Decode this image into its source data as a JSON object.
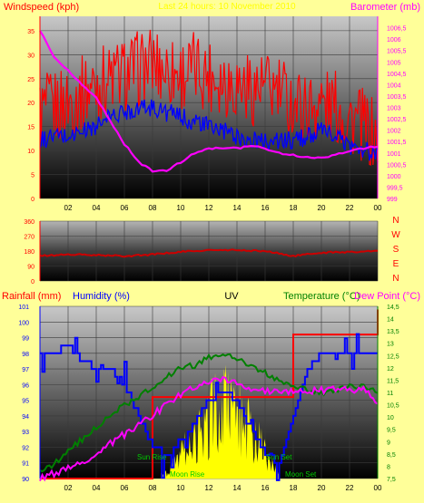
{
  "colors": {
    "background": "#ffff99",
    "red": "#ff0000",
    "blue": "#0000ff",
    "magenta": "#ff00ff",
    "green": "#008000",
    "yellow": "#ffff00",
    "dark_red": "#cc0000"
  },
  "header": {
    "title": "Last 24 hours: 10 November 2010"
  },
  "chart_data": [
    {
      "type": "line",
      "ylabel": "Windspeed (kph)",
      "ylabel_right": "Barometer (mb)",
      "ylim": [
        0,
        38
      ],
      "ylim_right": [
        999,
        1007
      ],
      "yticks": [
        0,
        5,
        10,
        15,
        20,
        25,
        30,
        35
      ],
      "yticks_right": [
        "999",
        "999,5",
        "1000",
        "1000,5",
        "1001",
        "1001,5",
        "1002",
        "1002,5",
        "1003",
        "1003,5",
        "1004",
        "1004,5",
        "1005",
        "1005,5",
        "1006",
        "1006,5"
      ],
      "xticks": [
        "02",
        "04",
        "06",
        "08",
        "10",
        "12",
        "14",
        "16",
        "18",
        "20",
        "22",
        "00"
      ],
      "x_hours": [
        0,
        1,
        2,
        3,
        4,
        5,
        6,
        7,
        8,
        9,
        10,
        11,
        12,
        13,
        14,
        15,
        16,
        17,
        18,
        19,
        20,
        21,
        22,
        23,
        24
      ],
      "series": [
        {
          "color": "#ff0000",
          "values": [
            18,
            19,
            20,
            22,
            24,
            25,
            26,
            27,
            28,
            27,
            26,
            27,
            26,
            25,
            24,
            23,
            23,
            22,
            20,
            19,
            20,
            19,
            17,
            15,
            12
          ]
        },
        {
          "color": "#0000ff",
          "values": [
            12,
            13,
            13,
            14,
            15,
            17,
            18,
            19,
            19,
            18,
            17,
            16,
            15,
            14,
            13,
            12,
            12,
            12,
            12,
            13,
            14,
            13,
            11,
            10,
            9
          ]
        },
        {
          "color": "#ff00ff",
          "axis": "right",
          "values": [
            1006.4,
            1005.2,
            1004.6,
            1004.0,
            1003.4,
            1002.4,
            1001.4,
            1000.6,
            1000.2,
            1000.2,
            1000.6,
            1001.0,
            1001.2,
            1001.2,
            1001.2,
            1001.3,
            1001.2,
            1001.0,
            1000.9,
            1000.8,
            1000.8,
            1000.9,
            1001.1,
            1001.2,
            1001.3
          ]
        }
      ]
    },
    {
      "type": "line",
      "ylim": [
        0,
        360
      ],
      "yticks": [
        0,
        90,
        180,
        270,
        360
      ],
      "direction_labels": [
        "N",
        "W",
        "S",
        "E",
        "N"
      ],
      "xticks": [
        "02",
        "04",
        "06",
        "08",
        "10",
        "12",
        "14",
        "16",
        "18",
        "20",
        "22",
        "00"
      ],
      "x_hours": [
        0,
        2,
        4,
        6,
        8,
        10,
        12,
        14,
        16,
        18,
        20,
        22,
        24
      ],
      "series": [
        {
          "color": "#cc0000",
          "values": [
            150,
            160,
            155,
            150,
            160,
            175,
            185,
            185,
            180,
            150,
            170,
            175,
            180
          ]
        }
      ]
    },
    {
      "type": "line",
      "ylabel": "Rainfall (mm)",
      "ylabel2": "Humidity (%)",
      "ylabel3": "UV",
      "ylabel_right": "Temperature (°C)",
      "ylabel_right2": "Dew Point (°C)",
      "ylim": [
        90,
        101
      ],
      "ylim_right": [
        7.5,
        14.5
      ],
      "yticks": [
        90,
        91,
        92,
        93,
        94,
        95,
        96,
        97,
        98,
        99,
        100,
        101
      ],
      "yticks_right": [
        "7,5",
        "8",
        "8,5",
        "9",
        "9,5",
        "10",
        "10,5",
        "11",
        "11,5",
        "12",
        "12,5",
        "13",
        "13,5",
        "14",
        "14,5"
      ],
      "xticks": [
        "02",
        "04",
        "06",
        "08",
        "10",
        "12",
        "14",
        "16",
        "18",
        "20",
        "22",
        "00"
      ],
      "annotations": [
        "Sun Rise",
        "Sun Set",
        "Moon Rise",
        "Moon Set"
      ],
      "x_hours": [
        0,
        1,
        2,
        3,
        4,
        5,
        6,
        7,
        8,
        9,
        10,
        11,
        12,
        13,
        14,
        15,
        16,
        17,
        18,
        19,
        20,
        21,
        22,
        23,
        24
      ],
      "series": [
        {
          "name": "Humidity (%)",
          "color": "#0000ff",
          "values": [
            98,
            98,
            98.5,
            97.5,
            97,
            97,
            96,
            94,
            92,
            91.5,
            92.5,
            93.5,
            95,
            95.5,
            95,
            93,
            91.5,
            91,
            94,
            97,
            98,
            98,
            98,
            98,
            98
          ]
        },
        {
          "name": "Temperature (°C)",
          "color": "#008000",
          "axis": "right",
          "values": [
            7.8,
            8.1,
            8.6,
            9.1,
            9.6,
            10.1,
            10.5,
            10.8,
            11.2,
            11.6,
            12.0,
            12.1,
            12.4,
            12.5,
            12.4,
            12.1,
            11.8,
            11.5,
            11.3,
            11.1,
            11.0,
            11.1,
            11.3,
            11.2,
            11.0
          ]
        },
        {
          "name": "Dew Point (°C)",
          "color": "#ff00ff",
          "axis": "right",
          "values": [
            7.5,
            7.7,
            7.9,
            8.2,
            8.5,
            8.9,
            9.3,
            9.7,
            10.1,
            10.5,
            10.9,
            11.2,
            11.4,
            11.5,
            11.4,
            11.2,
            11.1,
            11.0,
            11.0,
            11.0,
            11.1,
            11.1,
            11.1,
            11.1,
            10.6
          ]
        },
        {
          "name": "Rainfall (mm)",
          "color": "#ff0000",
          "step": true,
          "values": [
            90,
            90,
            90,
            90,
            90,
            90,
            90,
            90,
            95.2,
            95.2,
            95.2,
            95.2,
            95.2,
            95.2,
            95.2,
            95.2,
            95.2,
            95.2,
            99.2,
            99.2,
            99.2,
            99.2,
            99.2,
            99.2,
            100.8
          ]
        },
        {
          "name": "UV",
          "color": "#ffff00",
          "values": [
            0,
            0,
            0,
            0,
            0,
            0,
            0,
            0,
            0,
            0.2,
            0.8,
            1.4,
            2.0,
            2.5,
            2.2,
            1.6,
            0.9,
            0.2,
            0,
            0,
            0,
            0,
            0,
            0,
            0
          ],
          "ylim": [
            0,
            6
          ]
        }
      ]
    }
  ]
}
